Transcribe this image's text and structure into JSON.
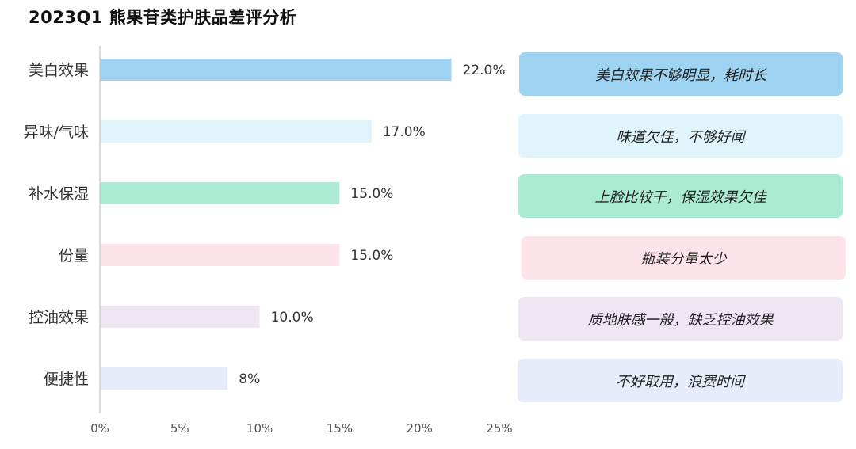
{
  "title": "2023Q1 熊果苷类护肤品差评分析",
  "chart_data": {
    "type": "bar",
    "orientation": "horizontal",
    "title": "2023Q1 熊果苷类护肤品差评分析",
    "categories": [
      "美白效果",
      "异味/气味",
      "补水保湿",
      "份量",
      "控油效果",
      "便捷性"
    ],
    "values": [
      22.0,
      17.0,
      15.0,
      15.0,
      10.0,
      8
    ],
    "value_labels": [
      "22.0%",
      "17.0%",
      "15.0%",
      "15.0%",
      "10.0%",
      "8%"
    ],
    "bar_colors": [
      "#9fd3f2",
      "#e0f4fb",
      "#abebd3",
      "#fde4e9",
      "#efe6f4",
      "#e6ecfa"
    ],
    "xlim": [
      0,
      25
    ],
    "xticks": [
      0,
      5,
      10,
      15,
      20,
      25
    ],
    "xtick_labels": [
      "0%",
      "5%",
      "10%",
      "15%",
      "20%",
      "25%"
    ],
    "grid": false,
    "legend": "none"
  },
  "notes": [
    {
      "text": "美白效果不够明显，耗时长",
      "color": "#9fd3f2"
    },
    {
      "text": "味道欠佳，不够好闻",
      "color": "#e0f4fb"
    },
    {
      "text": "上脸比较干，保湿效果欠佳",
      "color": "#abebd3"
    },
    {
      "text": "瓶装分量太少",
      "color": "#fde4e9"
    },
    {
      "text": "质地肤感一般，缺乏控油效果",
      "color": "#efe6f4"
    },
    {
      "text": "不好取用，浪费时间",
      "color": "#e6ecfa"
    }
  ]
}
